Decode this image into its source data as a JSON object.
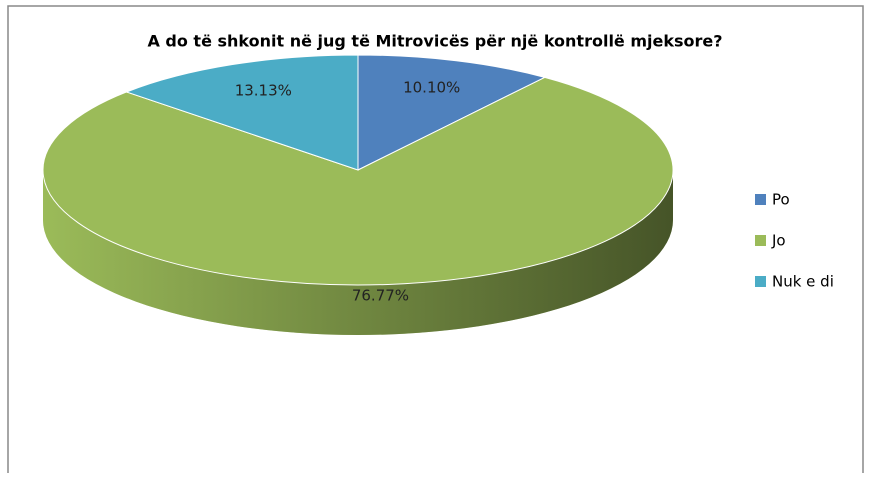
{
  "chart_data": {
    "type": "pie",
    "title": "A do të shkonit në jug të Mitrovicës për një kontrollë mjeksore?",
    "categories": [
      "Po",
      "Jo",
      "Nuk e di"
    ],
    "values": [
      10.1,
      76.77,
      13.13
    ],
    "value_labels": [
      "10.10%",
      "76.77%",
      "13.13%"
    ],
    "colors": [
      "#4f81bd",
      "#9bbb59",
      "#4bacc6"
    ],
    "legend": "right"
  }
}
